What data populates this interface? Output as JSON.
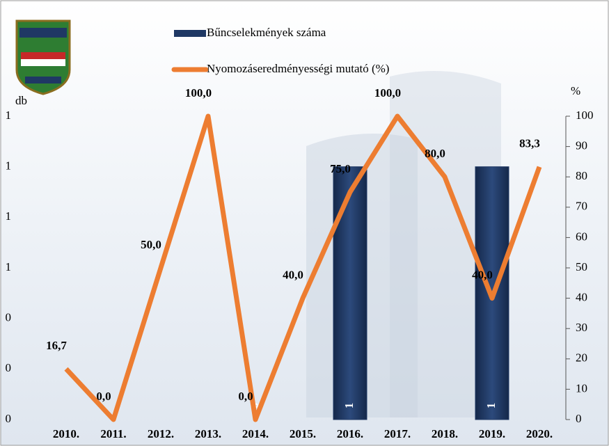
{
  "chart_data": {
    "type": "bar_line",
    "categories": [
      "2010.",
      "2011.",
      "2012.",
      "2013.",
      "2014.",
      "2015.",
      "2016.",
      "2017.",
      "2018.",
      "2019.",
      "2020."
    ],
    "series": [
      {
        "name": "Bűncselekmények száma",
        "type": "bar",
        "color": "#1f3864",
        "values": [
          null,
          null,
          null,
          null,
          0,
          null,
          1,
          null,
          null,
          1,
          null
        ]
      },
      {
        "name": "Nyomozáseredményességi mutató (%)",
        "type": "line",
        "color": "#ed7d31",
        "axis": "y2",
        "values": [
          16.7,
          0,
          50,
          100,
          0,
          40,
          75,
          100,
          80,
          40,
          83.3
        ],
        "value_labels": [
          "16,7",
          "0,0",
          "50,0",
          "100,0",
          "0,0",
          "40,0",
          "75,0",
          "100,0",
          "80,0",
          "40,0",
          "83,3"
        ]
      }
    ],
    "ylabel": "db",
    "y2label": "%",
    "ylim": [
      0,
      1.2
    ],
    "yticks": [
      0,
      {
        "value": 0.2,
        "label": "0"
      },
      {
        "value": 0.4,
        "label": "0"
      },
      {
        "value": 0.6,
        "label": "1"
      },
      {
        "value": 0.8,
        "label": "1"
      },
      {
        "value": 1.0,
        "label": "1"
      },
      {
        "value": 1.2,
        "label": "1"
      }
    ],
    "y2lim": [
      0,
      100
    ],
    "y2ticks": [
      0,
      10,
      20,
      30,
      40,
      50,
      60,
      70,
      80,
      90,
      100
    ],
    "legend": "top"
  }
}
